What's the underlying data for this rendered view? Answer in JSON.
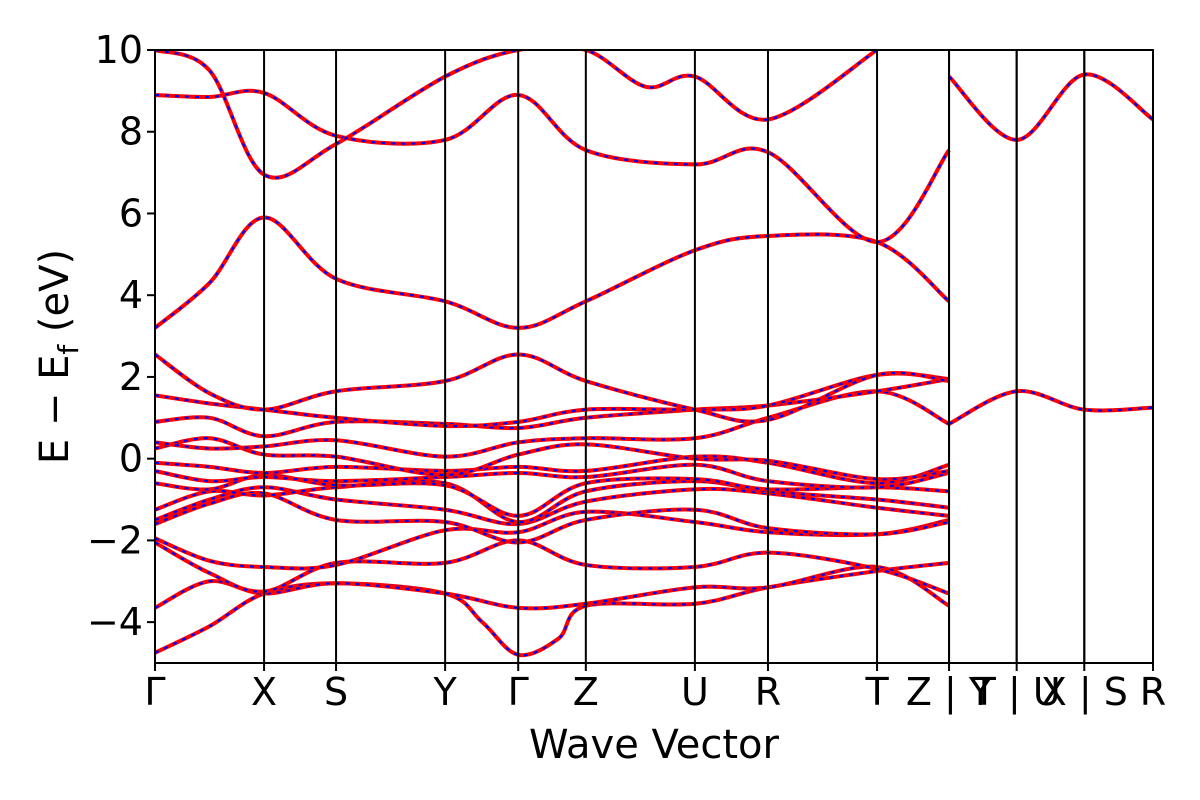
{
  "chart_data": {
    "type": "line",
    "title": "",
    "xlabel": "Wave Vector",
    "ylabel": "E − E",
    "ylabel_sub": "f",
    "ylabel_unit": " (eV)",
    "ylim": [
      -5,
      10
    ],
    "yticks": [
      -4,
      -2,
      0,
      2,
      4,
      6,
      8,
      10
    ],
    "ytick_labels": [
      "−4",
      "−2",
      "0",
      "2",
      "4",
      "6",
      "8",
      "10"
    ],
    "grid": false,
    "colors": {
      "solid": "#ff0000",
      "dashed": "#0000ff",
      "frame": "#000000"
    },
    "kpath": [
      "Γ",
      "X",
      "S",
      "Y",
      "Γ",
      "Z",
      "U",
      "R",
      "T",
      "Z",
      "Y",
      "T",
      "U",
      "X",
      "S",
      "R"
    ],
    "kpath_positions": [
      0,
      1.0,
      1.66,
      2.66,
      3.33,
      3.95,
      4.95,
      5.62,
      6.62,
      7.28,
      7.28,
      7.9,
      7.9,
      8.52,
      8.52,
      9.15
    ],
    "segment_breaks": [
      7.28,
      7.9,
      8.52
    ],
    "xtick_labels": [
      "Γ",
      "X",
      "S",
      "Y",
      "Γ",
      "Z",
      "U",
      "R",
      "T",
      "Z | Y",
      "T | U",
      "X | S",
      "R"
    ],
    "xtick_positions": [
      0,
      1.0,
      1.66,
      2.66,
      3.33,
      3.95,
      4.95,
      5.62,
      6.62,
      7.28,
      7.9,
      8.52,
      9.15
    ],
    "series": [
      {
        "style": "solid+dashed",
        "points": [
          [
            0,
            -4.75
          ],
          [
            0.5,
            -4.1
          ],
          [
            1.0,
            -3.3
          ],
          [
            1.66,
            -3.05
          ],
          [
            2.66,
            -3.3
          ],
          [
            3.0,
            -4.0
          ],
          [
            3.33,
            -4.8
          ],
          [
            3.7,
            -4.4
          ],
          [
            3.95,
            -3.6
          ],
          [
            4.95,
            -3.55
          ],
          [
            5.62,
            -3.15
          ],
          [
            6.62,
            -2.75
          ],
          [
            7.28,
            -2.55
          ]
        ]
      },
      {
        "style": "solid+dashed",
        "points": [
          [
            0,
            -3.65
          ],
          [
            0.5,
            -3.0
          ],
          [
            1.0,
            -3.3
          ],
          [
            1.66,
            -3.05
          ],
          [
            2.66,
            -3.3
          ],
          [
            3.33,
            -3.65
          ],
          [
            3.95,
            -3.55
          ],
          [
            4.95,
            -3.15
          ],
          [
            5.62,
            -3.15
          ],
          [
            6.62,
            -2.65
          ],
          [
            7.28,
            -3.6
          ]
        ]
      },
      {
        "style": "solid+dashed",
        "points": [
          [
            0,
            -2.05
          ],
          [
            0.5,
            -2.8
          ],
          [
            1.0,
            -3.25
          ],
          [
            1.66,
            -2.55
          ],
          [
            2.66,
            -2.55
          ],
          [
            3.33,
            -2.0
          ],
          [
            3.95,
            -2.6
          ],
          [
            4.95,
            -2.65
          ],
          [
            5.62,
            -2.3
          ],
          [
            6.62,
            -2.7
          ],
          [
            7.28,
            -3.3
          ]
        ]
      },
      {
        "style": "solid+dashed",
        "points": [
          [
            0,
            -1.95
          ],
          [
            0.5,
            -2.5
          ],
          [
            1.0,
            -2.65
          ],
          [
            1.66,
            -2.6
          ],
          [
            2.66,
            -1.75
          ],
          [
            3.33,
            -1.8
          ],
          [
            3.95,
            -1.3
          ],
          [
            4.95,
            -1.55
          ],
          [
            5.62,
            -1.8
          ],
          [
            6.62,
            -1.85
          ],
          [
            7.28,
            -1.5
          ]
        ]
      },
      {
        "style": "solid+dashed",
        "points": [
          [
            0,
            -1.6
          ],
          [
            0.5,
            -1.1
          ],
          [
            1.0,
            -0.85
          ],
          [
            1.66,
            -1.5
          ],
          [
            2.66,
            -1.55
          ],
          [
            3.33,
            -2.05
          ],
          [
            3.95,
            -1.5
          ],
          [
            4.95,
            -1.25
          ],
          [
            5.62,
            -1.7
          ],
          [
            6.62,
            -1.85
          ],
          [
            7.28,
            -1.55
          ]
        ]
      },
      {
        "style": "solid+dashed",
        "points": [
          [
            0,
            -1.5
          ],
          [
            0.5,
            -1.0
          ],
          [
            1.0,
            -0.7
          ],
          [
            1.66,
            -1.0
          ],
          [
            2.66,
            -1.25
          ],
          [
            3.33,
            -1.6
          ],
          [
            3.95,
            -1.05
          ],
          [
            4.95,
            -0.75
          ],
          [
            5.62,
            -0.85
          ],
          [
            6.62,
            -1.2
          ],
          [
            7.28,
            -1.4
          ]
        ]
      },
      {
        "style": "solid+dashed",
        "points": [
          [
            0,
            -1.25
          ],
          [
            0.5,
            -0.8
          ],
          [
            1.0,
            -0.9
          ],
          [
            1.66,
            -0.7
          ],
          [
            2.66,
            -0.6
          ],
          [
            3.33,
            -1.55
          ],
          [
            3.95,
            -0.8
          ],
          [
            4.95,
            -0.55
          ],
          [
            5.62,
            -0.8
          ],
          [
            6.62,
            -1.0
          ],
          [
            7.28,
            -1.2
          ]
        ]
      },
      {
        "style": "solid+dashed",
        "points": [
          [
            0,
            -0.6
          ],
          [
            0.5,
            -0.75
          ],
          [
            1.0,
            -0.4
          ],
          [
            1.66,
            -0.65
          ],
          [
            2.66,
            -0.65
          ],
          [
            3.33,
            -1.4
          ],
          [
            3.95,
            -0.6
          ],
          [
            4.95,
            -0.5
          ],
          [
            5.62,
            -0.75
          ],
          [
            6.62,
            -0.7
          ],
          [
            7.28,
            -0.8
          ]
        ]
      },
      {
        "style": "solid+dashed",
        "points": [
          [
            0,
            -0.3
          ],
          [
            0.5,
            -0.55
          ],
          [
            1.0,
            -0.45
          ],
          [
            1.66,
            -0.55
          ],
          [
            2.66,
            -0.45
          ],
          [
            3.33,
            -0.35
          ],
          [
            3.95,
            -0.45
          ],
          [
            4.95,
            -0.15
          ],
          [
            5.62,
            -0.55
          ],
          [
            6.62,
            -0.7
          ],
          [
            7.28,
            -0.35
          ]
        ]
      },
      {
        "style": "solid+dashed",
        "points": [
          [
            0,
            -0.1
          ],
          [
            0.5,
            -0.2
          ],
          [
            1.0,
            -0.35
          ],
          [
            1.66,
            -0.2
          ],
          [
            2.66,
            -0.3
          ],
          [
            3.33,
            -0.2
          ],
          [
            3.95,
            -0.3
          ],
          [
            4.95,
            0.05
          ],
          [
            5.62,
            -0.1
          ],
          [
            6.62,
            -0.6
          ],
          [
            7.28,
            -0.15
          ]
        ]
      },
      {
        "style": "solid+dashed",
        "points": [
          [
            0,
            0.25
          ],
          [
            0.5,
            0.5
          ],
          [
            1.0,
            0.1
          ],
          [
            1.66,
            0.05
          ],
          [
            2.66,
            -0.4
          ],
          [
            3.33,
            0.1
          ],
          [
            3.95,
            0.35
          ],
          [
            4.95,
            0.0
          ],
          [
            5.62,
            -0.05
          ],
          [
            6.62,
            -0.5
          ],
          [
            7.28,
            -0.3
          ]
        ]
      },
      {
        "style": "solid+dashed",
        "points": [
          [
            0,
            0.4
          ],
          [
            0.5,
            0.25
          ],
          [
            1.0,
            0.3
          ],
          [
            1.66,
            0.45
          ],
          [
            2.66,
            0.05
          ],
          [
            3.33,
            0.4
          ],
          [
            3.95,
            0.5
          ],
          [
            4.95,
            0.5
          ],
          [
            5.62,
            1.0
          ],
          [
            6.62,
            1.65
          ],
          [
            7.28,
            0.85
          ]
        ]
      },
      {
        "style": "solid+dashed",
        "points": [
          [
            0,
            0.9
          ],
          [
            0.5,
            1.0
          ],
          [
            1.0,
            0.55
          ],
          [
            1.66,
            0.9
          ],
          [
            2.66,
            0.85
          ],
          [
            3.33,
            0.75
          ],
          [
            3.95,
            1.0
          ],
          [
            4.95,
            1.2
          ],
          [
            5.62,
            1.3
          ],
          [
            6.62,
            1.65
          ],
          [
            7.28,
            1.95
          ]
        ]
      },
      {
        "style": "solid+dashed",
        "points": [
          [
            0,
            1.55
          ],
          [
            0.5,
            1.35
          ],
          [
            1.0,
            1.2
          ],
          [
            1.66,
            1.0
          ],
          [
            2.66,
            0.8
          ],
          [
            3.33,
            0.9
          ],
          [
            3.95,
            1.2
          ],
          [
            4.95,
            1.2
          ],
          [
            5.62,
            1.3
          ],
          [
            6.62,
            2.05
          ],
          [
            7.28,
            1.95
          ]
        ]
      },
      {
        "style": "solid+dashed",
        "points": [
          [
            0,
            2.55
          ],
          [
            0.5,
            1.6
          ],
          [
            1.0,
            1.2
          ],
          [
            1.66,
            1.65
          ],
          [
            2.66,
            1.9
          ],
          [
            3.33,
            2.55
          ],
          [
            3.95,
            1.9
          ],
          [
            4.95,
            1.2
          ],
          [
            5.62,
            0.95
          ],
          [
            6.62,
            2.05
          ],
          [
            7.28,
            1.9
          ]
        ]
      },
      {
        "style": "solid+dashed",
        "points": [
          [
            0,
            3.2
          ],
          [
            0.5,
            4.3
          ],
          [
            1.0,
            5.9
          ],
          [
            1.66,
            4.4
          ],
          [
            2.66,
            3.85
          ],
          [
            3.33,
            3.2
          ],
          [
            3.95,
            3.85
          ],
          [
            4.95,
            5.1
          ],
          [
            5.62,
            5.45
          ],
          [
            6.62,
            5.3
          ],
          [
            7.28,
            3.85
          ]
        ]
      },
      {
        "style": "solid+dashed",
        "points": [
          [
            0,
            8.9
          ],
          [
            0.5,
            8.85
          ],
          [
            1.0,
            8.95
          ],
          [
            1.66,
            7.9
          ],
          [
            2.66,
            7.8
          ],
          [
            3.33,
            8.9
          ],
          [
            3.95,
            7.55
          ],
          [
            4.95,
            7.2
          ],
          [
            5.62,
            7.5
          ],
          [
            6.62,
            5.3
          ],
          [
            7.28,
            7.55
          ]
        ]
      },
      {
        "style": "solid+dashed",
        "points": [
          [
            0,
            10.0
          ],
          [
            0.5,
            9.5
          ],
          [
            1.0,
            6.95
          ],
          [
            1.66,
            7.7
          ],
          [
            2.66,
            9.35
          ],
          [
            3.33,
            10.0
          ],
          [
            3.95,
            10.0
          ],
          [
            4.5,
            9.1
          ],
          [
            4.95,
            9.35
          ],
          [
            5.62,
            8.3
          ],
          [
            6.62,
            10.0
          ]
        ]
      },
      {
        "style": "solid+dashed",
        "points": [
          [
            7.28,
            9.35
          ],
          [
            7.9,
            7.8
          ],
          [
            8.52,
            9.4
          ],
          [
            9.15,
            8.3
          ]
        ]
      },
      {
        "style": "solid+dashed",
        "points": [
          [
            7.28,
            0.85
          ],
          [
            7.9,
            1.65
          ],
          [
            8.52,
            1.2
          ],
          [
            9.15,
            1.25
          ]
        ]
      }
    ]
  }
}
